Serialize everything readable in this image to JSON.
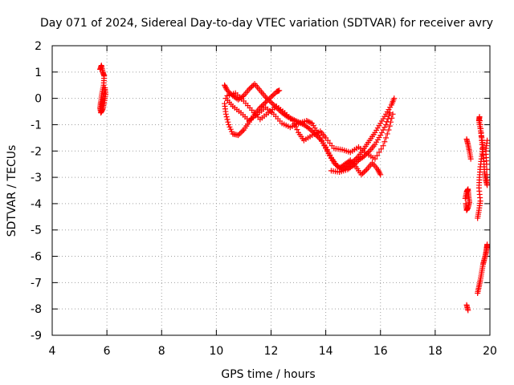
{
  "chart_data": {
    "type": "scatter",
    "title": "Day 071 of 2024, Sidereal Day-to-day VTEC variation (SDTVAR) for receiver avry",
    "xlabel": "GPS time / hours",
    "ylabel": "SDTVAR / TECUs",
    "xlim": [
      4,
      20
    ],
    "ylim": [
      -9,
      2
    ],
    "xticks": [
      4,
      6,
      8,
      10,
      12,
      14,
      16,
      18,
      20
    ],
    "yticks": [
      -9,
      -8,
      -7,
      -6,
      -5,
      -4,
      -3,
      -2,
      -1,
      0,
      1,
      2
    ],
    "grid": true,
    "marker": "+",
    "series": [
      {
        "name": "SDTVAR",
        "color": "#ff0000",
        "segments": [
          [
            [
              5.75,
              1.1
            ],
            [
              5.8,
              1.25
            ],
            [
              5.85,
              1.0
            ],
            [
              5.9,
              0.85
            ],
            [
              5.88,
              0.5
            ],
            [
              5.82,
              0.2
            ],
            [
              5.78,
              -0.1
            ],
            [
              5.75,
              -0.35
            ],
            [
              5.78,
              -0.55
            ],
            [
              5.85,
              -0.4
            ],
            [
              5.9,
              -0.15
            ],
            [
              5.95,
              0.15
            ],
            [
              5.93,
              0.4
            ],
            [
              5.85,
              -0.05
            ],
            [
              5.8,
              -0.3
            ]
          ],
          [
            [
              10.3,
              0.5
            ],
            [
              10.4,
              0.3
            ],
            [
              10.6,
              0.1
            ],
            [
              10.8,
              -0.05
            ],
            [
              11.0,
              0.1
            ],
            [
              11.2,
              0.35
            ],
            [
              11.4,
              0.55
            ],
            [
              11.6,
              0.3
            ],
            [
              11.8,
              0.05
            ],
            [
              12.0,
              -0.15
            ],
            [
              12.2,
              -0.35
            ],
            [
              12.4,
              -0.55
            ],
            [
              12.6,
              -0.7
            ],
            [
              12.8,
              -0.8
            ],
            [
              13.0,
              -0.9
            ],
            [
              13.2,
              -1.0
            ],
            [
              13.4,
              -1.15
            ],
            [
              13.6,
              -1.35
            ],
            [
              13.8,
              -1.55
            ],
            [
              14.0,
              -1.85
            ],
            [
              14.2,
              -2.25
            ],
            [
              14.4,
              -2.55
            ],
            [
              14.6,
              -2.7
            ],
            [
              14.8,
              -2.55
            ],
            [
              15.0,
              -2.4
            ],
            [
              15.2,
              -2.2
            ],
            [
              15.4,
              -1.9
            ],
            [
              15.6,
              -1.6
            ],
            [
              15.8,
              -1.3
            ],
            [
              16.0,
              -0.95
            ],
            [
              16.2,
              -0.6
            ],
            [
              16.4,
              -0.25
            ],
            [
              16.5,
              0.0
            ]
          ],
          [
            [
              10.3,
              -0.2
            ],
            [
              10.35,
              -0.6
            ],
            [
              10.45,
              -1.0
            ],
            [
              10.6,
              -1.35
            ],
            [
              10.8,
              -1.4
            ],
            [
              11.0,
              -1.2
            ],
            [
              11.2,
              -0.9
            ],
            [
              11.4,
              -0.6
            ],
            [
              11.6,
              -0.35
            ],
            [
              11.8,
              -0.15
            ],
            [
              12.0,
              0.05
            ],
            [
              12.2,
              0.25
            ],
            [
              12.3,
              0.3
            ]
          ],
          [
            [
              10.35,
              0.0
            ],
            [
              10.6,
              -0.3
            ],
            [
              10.9,
              -0.55
            ],
            [
              11.2,
              -0.85
            ],
            [
              11.5,
              -0.6
            ],
            [
              11.8,
              -0.35
            ],
            [
              12.1,
              -0.6
            ],
            [
              12.4,
              -0.95
            ],
            [
              12.7,
              -1.1
            ],
            [
              13.0,
              -0.95
            ],
            [
              13.3,
              -0.85
            ],
            [
              13.5,
              -0.95
            ],
            [
              13.7,
              -1.3
            ],
            [
              13.9,
              -1.7
            ],
            [
              14.1,
              -2.1
            ],
            [
              14.3,
              -2.45
            ],
            [
              14.5,
              -2.65
            ],
            [
              14.7,
              -2.5
            ],
            [
              14.9,
              -2.35
            ],
            [
              15.1,
              -2.6
            ],
            [
              15.3,
              -2.9
            ],
            [
              15.5,
              -2.7
            ],
            [
              15.7,
              -2.45
            ],
            [
              15.9,
              -2.7
            ],
            [
              16.0,
              -2.9
            ]
          ],
          [
            [
              10.4,
              0.1
            ],
            [
              10.7,
              0.2
            ],
            [
              11.0,
              -0.1
            ],
            [
              11.3,
              -0.45
            ],
            [
              11.6,
              -0.8
            ],
            [
              11.9,
              -0.55
            ],
            [
              12.2,
              -0.3
            ],
            [
              12.5,
              -0.55
            ],
            [
              12.8,
              -0.85
            ],
            [
              13.0,
              -1.3
            ],
            [
              13.2,
              -1.6
            ],
            [
              13.5,
              -1.4
            ],
            [
              13.8,
              -1.25
            ],
            [
              14.0,
              -1.5
            ],
            [
              14.3,
              -1.9
            ],
            [
              14.6,
              -1.95
            ],
            [
              14.9,
              -2.05
            ],
            [
              15.2,
              -1.85
            ],
            [
              15.5,
              -2.1
            ],
            [
              15.8,
              -2.3
            ],
            [
              16.1,
              -1.8
            ],
            [
              16.3,
              -1.2
            ],
            [
              16.45,
              -0.6
            ]
          ],
          [
            [
              14.2,
              -2.75
            ],
            [
              14.5,
              -2.8
            ],
            [
              14.8,
              -2.7
            ],
            [
              15.0,
              -2.55
            ],
            [
              15.2,
              -2.35
            ],
            [
              15.4,
              -2.2
            ],
            [
              15.6,
              -2.0
            ],
            [
              15.8,
              -1.75
            ],
            [
              16.0,
              -1.4
            ],
            [
              16.2,
              -1.0
            ],
            [
              16.35,
              -0.55
            ]
          ],
          [
            [
              19.15,
              -1.55
            ],
            [
              19.2,
              -1.75
            ],
            [
              19.25,
              -2.0
            ],
            [
              19.3,
              -2.3
            ]
          ],
          [
            [
              19.1,
              -3.8
            ],
            [
              19.15,
              -3.55
            ],
            [
              19.2,
              -3.45
            ],
            [
              19.22,
              -3.7
            ],
            [
              19.25,
              -3.95
            ],
            [
              19.2,
              -4.15
            ],
            [
              19.15,
              -4.25
            ],
            [
              19.12,
              -4.0
            ]
          ],
          [
            [
              19.15,
              -7.85
            ],
            [
              19.2,
              -8.05
            ]
          ],
          [
            [
              19.55,
              -4.55
            ],
            [
              19.6,
              -4.25
            ],
            [
              19.65,
              -3.9
            ],
            [
              19.6,
              -3.4
            ],
            [
              19.62,
              -3.0
            ],
            [
              19.65,
              -2.6
            ],
            [
              19.7,
              -2.2
            ],
            [
              19.75,
              -1.85
            ],
            [
              19.7,
              -1.5
            ],
            [
              19.65,
              -1.15
            ],
            [
              19.6,
              -0.85
            ],
            [
              19.62,
              -0.7
            ],
            [
              19.68,
              -1.3
            ],
            [
              19.72,
              -1.9
            ],
            [
              19.78,
              -2.4
            ],
            [
              19.8,
              -2.8
            ],
            [
              19.85,
              -3.1
            ],
            [
              19.9,
              -3.3
            ],
            [
              19.88,
              -2.5
            ],
            [
              19.85,
              -2.0
            ],
            [
              19.9,
              -1.6
            ]
          ],
          [
            [
              19.55,
              -7.4
            ],
            [
              19.6,
              -7.15
            ],
            [
              19.65,
              -6.9
            ],
            [
              19.7,
              -6.6
            ],
            [
              19.75,
              -6.3
            ],
            [
              19.8,
              -6.1
            ],
            [
              19.85,
              -5.9
            ],
            [
              19.88,
              -5.7
            ],
            [
              19.9,
              -5.55
            ]
          ]
        ]
      }
    ]
  }
}
